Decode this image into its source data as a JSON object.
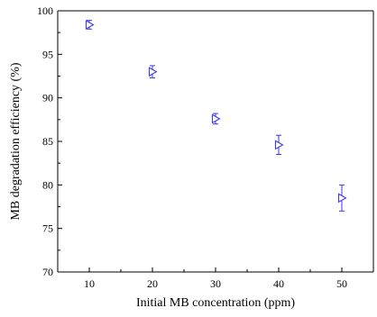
{
  "chart_data": {
    "type": "scatter",
    "xlabel": "Initial MB concentration (ppm)",
    "ylabel": "MB degradation efficiency (%)",
    "xlim": [
      5,
      55
    ],
    "ylim": [
      70,
      100
    ],
    "x_ticks": [
      10,
      20,
      30,
      40,
      50
    ],
    "y_ticks": [
      70,
      75,
      80,
      85,
      90,
      95,
      100
    ],
    "marker": "right-pointing-triangle",
    "color": "#3a3aee",
    "series": [
      {
        "x": [
          10,
          20,
          30,
          40,
          50
        ],
        "y": [
          98.4,
          93.0,
          87.6,
          84.6,
          78.5
        ],
        "error": [
          0.5,
          0.7,
          0.6,
          1.1,
          1.5
        ]
      }
    ],
    "grid": false
  }
}
